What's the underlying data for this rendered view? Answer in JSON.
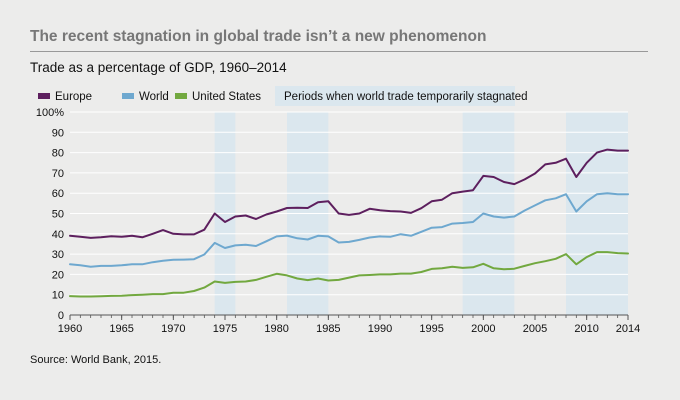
{
  "title": "The recent stagnation in global trade isn’t a new phenomenon",
  "colors": {
    "background": "#ececeb",
    "band": "#dbe7ee",
    "europe": "#5d1f5e",
    "world": "#6ea8cf",
    "united_states": "#72a83f",
    "grid": "#ffffff",
    "axis": "#555555"
  },
  "source": "Source: World Bank, 2015.",
  "chart_data": {
    "type": "line",
    "title": "Trade as a percentage of GDP, 1960–2014",
    "xlabel": "",
    "ylabel": "",
    "xlim": [
      1960,
      2014
    ],
    "ylim": [
      0,
      100
    ],
    "x_ticks": [
      1960,
      1965,
      1970,
      1975,
      1980,
      1985,
      1990,
      1995,
      2000,
      2005,
      2010,
      2014
    ],
    "y_ticks": [
      0,
      10,
      20,
      30,
      40,
      50,
      60,
      70,
      80,
      90,
      100
    ],
    "y_tick_labels": [
      "0",
      "10",
      "20",
      "30",
      "40",
      "50",
      "60",
      "70",
      "80",
      "90",
      "100%"
    ],
    "legend_position": "top-left",
    "band_legend_label": "Periods when world trade temporarily stagnated",
    "stagnation_periods": [
      [
        1974,
        1976
      ],
      [
        1981,
        1985
      ],
      [
        1998,
        2003
      ],
      [
        2008,
        2014
      ]
    ],
    "x": [
      1960,
      1961,
      1962,
      1963,
      1964,
      1965,
      1966,
      1967,
      1968,
      1969,
      1970,
      1971,
      1972,
      1973,
      1974,
      1975,
      1976,
      1977,
      1978,
      1979,
      1980,
      1981,
      1982,
      1983,
      1984,
      1985,
      1986,
      1987,
      1988,
      1989,
      1990,
      1991,
      1992,
      1993,
      1994,
      1995,
      1996,
      1997,
      1998,
      1999,
      2000,
      2001,
      2002,
      2003,
      2004,
      2005,
      2006,
      2007,
      2008,
      2009,
      2010,
      2011,
      2012,
      2013,
      2014
    ],
    "series": [
      {
        "name": "Europe",
        "color_key": "europe",
        "values": [
          39,
          38.5,
          38,
          38.3,
          38.8,
          38.5,
          39,
          38.3,
          40,
          41.8,
          40,
          39.7,
          39.7,
          42,
          50,
          45.8,
          48.5,
          49,
          47.3,
          49.5,
          51,
          52.7,
          52.8,
          52.7,
          55.5,
          56,
          50,
          49.3,
          50,
          52.3,
          51.6,
          51.2,
          51,
          50.3,
          52.6,
          56,
          56.8,
          60,
          60.8,
          61.5,
          68.5,
          68,
          65.5,
          64.5,
          66.8,
          69.7,
          74.2,
          75,
          77,
          68,
          75,
          80,
          81.5,
          81,
          81
        ]
      },
      {
        "name": "World",
        "color_key": "world",
        "values": [
          25,
          24.5,
          23.8,
          24.2,
          24.2,
          24.5,
          25,
          25,
          26,
          26.7,
          27.2,
          27.3,
          27.5,
          29.8,
          35.5,
          33,
          34.3,
          34.6,
          34,
          36.3,
          38.7,
          39.1,
          37.8,
          37.2,
          39,
          38.7,
          35.7,
          36,
          37,
          38.2,
          38.7,
          38.5,
          39.8,
          39,
          41,
          43,
          43.3,
          45,
          45.3,
          45.8,
          50,
          48.5,
          48,
          48.5,
          51.5,
          54,
          56.5,
          57.5,
          59.5,
          51,
          56,
          59.5,
          60,
          59.5,
          59.5
        ]
      },
      {
        "name": "United States",
        "color_key": "united_states",
        "values": [
          9.3,
          9.1,
          9.1,
          9.2,
          9.4,
          9.5,
          9.8,
          10,
          10.3,
          10.3,
          11,
          11,
          11.8,
          13.5,
          16.5,
          15.8,
          16.3,
          16.5,
          17.3,
          18.8,
          20.3,
          19.5,
          18,
          17.2,
          18,
          17,
          17.3,
          18.4,
          19.5,
          19.7,
          20,
          20,
          20.4,
          20.4,
          21.2,
          22.7,
          23,
          23.8,
          23.2,
          23.5,
          25.2,
          23,
          22.5,
          22.8,
          24.2,
          25.5,
          26.5,
          27.7,
          30,
          25,
          28.5,
          31,
          31,
          30.5,
          30.3
        ]
      }
    ]
  }
}
